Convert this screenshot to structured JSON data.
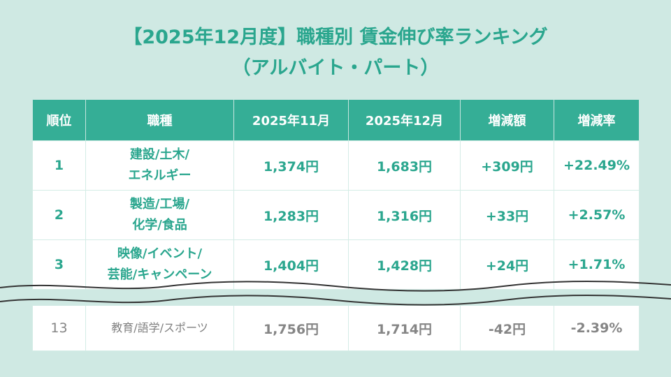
{
  "title": {
    "line1": "【2025年12月度】職種別 賃金伸び率ランキング",
    "line2": "（アルバイト・パート）"
  },
  "table": {
    "headers": [
      "順位",
      "職種",
      "2025年11月",
      "2025年12月",
      "増減額",
      "増減率"
    ],
    "rows": [
      {
        "rank": "1",
        "job_line1": "建設/土木/",
        "job_line2": "エネルギー",
        "nov": "1,374円",
        "dec": "1,683円",
        "diff": "+309円",
        "rate": "+22.49%"
      },
      {
        "rank": "2",
        "job_line1": "製造/工場/",
        "job_line2": "化学/食品",
        "nov": "1,283円",
        "dec": "1,316円",
        "diff": "+33円",
        "rate": "+2.57%"
      },
      {
        "rank": "3",
        "job_line1": "映像/イベント/",
        "job_line2": "芸能/キャンペーン",
        "nov": "1,404円",
        "dec": "1,428円",
        "diff": "+24円",
        "rate": "+1.71%"
      }
    ],
    "last_row": {
      "rank": "13",
      "job": "教育/語学/スポーツ",
      "nov": "1,756円",
      "dec": "1,714円",
      "diff": "-42円",
      "rate": "-2.39%"
    }
  },
  "colors": {
    "background": "#cfe9e3",
    "accent": "#2aa68e",
    "header_bg": "#35ae96",
    "muted_text": "#858585"
  }
}
